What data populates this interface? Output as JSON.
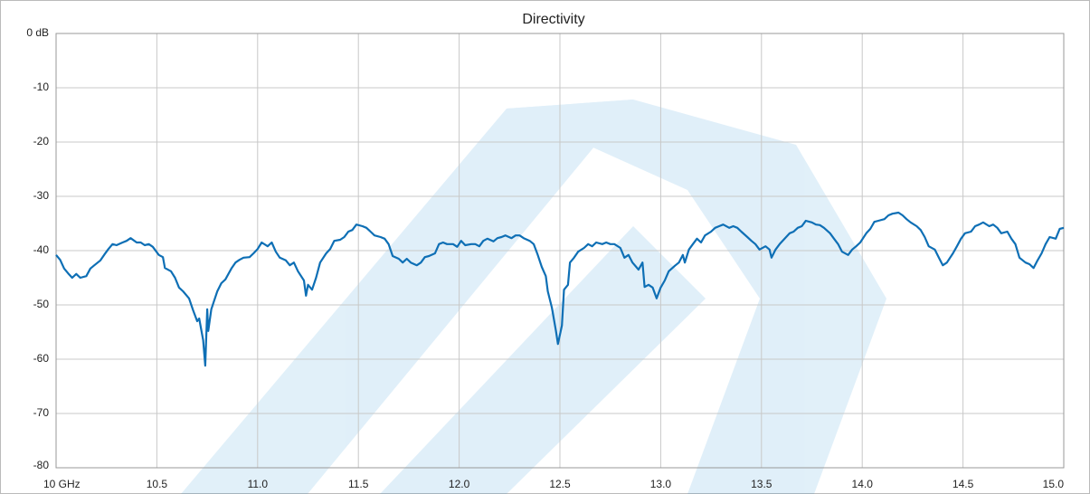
{
  "chart_data": {
    "type": "line",
    "title": "Directivity",
    "xlim": [
      10,
      15
    ],
    "ylim": [
      -80,
      0
    ],
    "xticks": [
      {
        "value": 10,
        "label": "10 GHz"
      },
      10.5,
      {
        "value": 11,
        "label": "11.0"
      },
      11.5,
      {
        "value": 12,
        "label": "12.0"
      },
      12.5,
      {
        "value": 13,
        "label": "13.0"
      },
      13.5,
      {
        "value": 14,
        "label": "14.0"
      },
      14.5,
      {
        "value": 15,
        "label": "15.0"
      }
    ],
    "yticks": [
      {
        "value": 0,
        "label": "0 dB"
      },
      -10,
      -20,
      -30,
      -40,
      -50,
      -60,
      -70,
      -80
    ],
    "grid": true,
    "series": [
      {
        "color": "#0e6fb5",
        "x": [
          10.0,
          10.02,
          10.04,
          10.06,
          10.08,
          10.1,
          10.12,
          10.15,
          10.17,
          10.19,
          10.22,
          10.24,
          10.26,
          10.28,
          10.3,
          10.33,
          10.35,
          10.37,
          10.4,
          10.42,
          10.44,
          10.46,
          10.48,
          10.51,
          10.53,
          10.54,
          10.57,
          10.59,
          10.61,
          10.63,
          10.66,
          10.68,
          10.7,
          10.71,
          10.73,
          10.74,
          10.75,
          10.755,
          10.77,
          10.78,
          10.8,
          10.82,
          10.84,
          10.87,
          10.89,
          10.91,
          10.93,
          10.96,
          10.98,
          11.0,
          11.02,
          11.05,
          11.07,
          11.09,
          11.11,
          11.14,
          11.16,
          11.18,
          11.2,
          11.23,
          11.24,
          11.25,
          11.27,
          11.29,
          11.31,
          11.34,
          11.36,
          11.38,
          11.41,
          11.43,
          11.45,
          11.47,
          11.49,
          11.52,
          11.54,
          11.56,
          11.58,
          11.61,
          11.63,
          11.65,
          11.67,
          11.7,
          11.72,
          11.74,
          11.76,
          11.79,
          11.81,
          11.83,
          11.85,
          11.88,
          11.9,
          11.92,
          11.94,
          11.97,
          11.99,
          12.01,
          12.03,
          12.06,
          12.08,
          12.1,
          12.12,
          12.14,
          12.17,
          12.19,
          12.21,
          12.23,
          12.26,
          12.28,
          12.3,
          12.32,
          12.35,
          12.37,
          12.39,
          12.41,
          12.43,
          12.44,
          12.46,
          12.48,
          12.49,
          12.51,
          12.52,
          12.54,
          12.55,
          12.57,
          12.59,
          12.62,
          12.64,
          12.66,
          12.68,
          12.71,
          12.73,
          12.75,
          12.77,
          12.8,
          12.82,
          12.84,
          12.86,
          12.89,
          12.91,
          12.92,
          12.94,
          12.96,
          12.98,
          13.0,
          13.02,
          13.04,
          13.07,
          13.09,
          13.11,
          13.12,
          13.14,
          13.16,
          13.18,
          13.2,
          13.22,
          13.25,
          13.27,
          13.29,
          13.31,
          13.34,
          13.36,
          13.38,
          13.4,
          13.43,
          13.45,
          13.47,
          13.49,
          13.52,
          13.54,
          13.55,
          13.57,
          13.59,
          13.61,
          13.64,
          13.66,
          13.68,
          13.7,
          13.72,
          13.75,
          13.77,
          13.79,
          13.81,
          13.84,
          13.86,
          13.88,
          13.9,
          13.93,
          13.95,
          13.97,
          13.99,
          14.02,
          14.04,
          14.06,
          14.08,
          14.11,
          14.13,
          14.15,
          14.18,
          14.2,
          14.22,
          14.24,
          14.27,
          14.29,
          14.31,
          14.33,
          14.36,
          14.38,
          14.4,
          14.42,
          14.45,
          14.47,
          14.49,
          14.51,
          14.54,
          14.56,
          14.58,
          14.6,
          14.63,
          14.65,
          14.67,
          14.69,
          14.72,
          14.74,
          14.76,
          14.78,
          14.81,
          14.83,
          14.85,
          14.87,
          14.89,
          14.91,
          14.93,
          14.96,
          14.98,
          15.0
        ],
        "values": [
          -40.8,
          -41.7,
          -43.3,
          -44.2,
          -45,
          -44.3,
          -45,
          -44.7,
          -43.3,
          -42.7,
          -41.8,
          -40.7,
          -39.7,
          -38.8,
          -39,
          -38.5,
          -38.2,
          -37.7,
          -38.5,
          -38.5,
          -39,
          -38.8,
          -39.3,
          -40.8,
          -41.2,
          -43.2,
          -43.8,
          -45,
          -46.8,
          -47.5,
          -48.8,
          -51,
          -53,
          -52.5,
          -56.5,
          -61.2,
          -50.8,
          -54.8,
          -50.8,
          -49.7,
          -47.5,
          -46,
          -45.3,
          -43.3,
          -42.2,
          -41.7,
          -41.3,
          -41.2,
          -40.5,
          -39.7,
          -38.5,
          -39.2,
          -38.5,
          -40.2,
          -41.3,
          -41.8,
          -42.7,
          -42.2,
          -43.8,
          -45.5,
          -48.3,
          -46.3,
          -47.2,
          -45,
          -42.2,
          -40.5,
          -39.7,
          -38.2,
          -38,
          -37.5,
          -36.5,
          -36.2,
          -35.2,
          -35.5,
          -35.8,
          -36.5,
          -37.2,
          -37.5,
          -37.8,
          -38.8,
          -41,
          -41.5,
          -42.2,
          -41.5,
          -42.2,
          -42.7,
          -42.2,
          -41.2,
          -41,
          -40.5,
          -38.8,
          -38.5,
          -38.8,
          -38.8,
          -39.3,
          -38.2,
          -39,
          -38.8,
          -38.8,
          -39.2,
          -38.2,
          -37.8,
          -38.3,
          -37.7,
          -37.5,
          -37.2,
          -37.7,
          -37.2,
          -37.2,
          -37.7,
          -38.2,
          -38.8,
          -40.8,
          -43,
          -44.7,
          -47.5,
          -50.5,
          -54.7,
          -57.2,
          -53.8,
          -47.2,
          -46.3,
          -42.2,
          -41.3,
          -40.2,
          -39.5,
          -38.8,
          -39.2,
          -38.5,
          -38.8,
          -38.5,
          -38.8,
          -38.8,
          -39.5,
          -41.3,
          -40.8,
          -42.2,
          -43.5,
          -42.2,
          -46.7,
          -46.3,
          -46.8,
          -48.8,
          -46.8,
          -45.5,
          -43.8,
          -42.8,
          -42.2,
          -40.8,
          -42.2,
          -39.8,
          -38.8,
          -37.8,
          -38.5,
          -37.2,
          -36.5,
          -35.8,
          -35.5,
          -35.2,
          -35.8,
          -35.5,
          -35.8,
          -36.5,
          -37.5,
          -38.2,
          -38.8,
          -39.8,
          -39.2,
          -39.8,
          -41.3,
          -39.8,
          -38.8,
          -38,
          -36.8,
          -36.5,
          -35.8,
          -35.5,
          -34.5,
          -34.8,
          -35.2,
          -35.3,
          -35.8,
          -36.8,
          -37.8,
          -38.8,
          -40.2,
          -40.8,
          -39.8,
          -39.2,
          -38.5,
          -36.8,
          -36,
          -34.7,
          -34.5,
          -34.2,
          -33.5,
          -33.2,
          -33,
          -33.5,
          -34.2,
          -34.8,
          -35.5,
          -36.2,
          -37.5,
          -39.2,
          -39.8,
          -41.3,
          -42.7,
          -42.2,
          -40.5,
          -39.2,
          -37.8,
          -36.8,
          -36.5,
          -35.5,
          -35.2,
          -34.8,
          -35.5,
          -35.2,
          -35.8,
          -36.8,
          -36.5,
          -37.8,
          -38.8,
          -41.3,
          -42.2,
          -42.5,
          -43.2,
          -41.8,
          -40.5,
          -38.8,
          -37.5,
          -37.8,
          -36,
          -35.8
        ]
      }
    ]
  }
}
